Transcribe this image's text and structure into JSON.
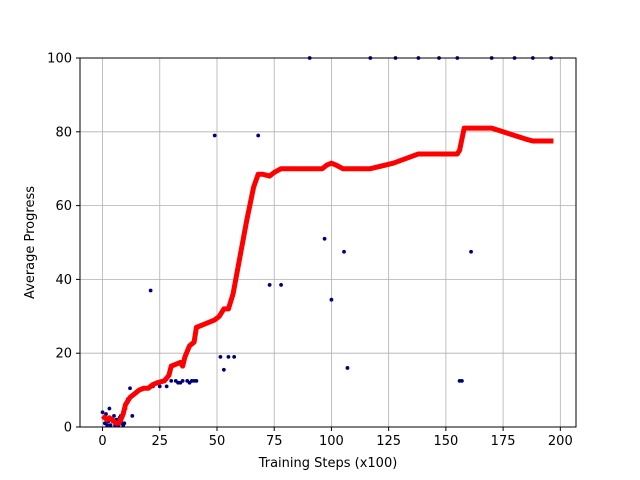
{
  "chart_data": {
    "type": "scatter",
    "title": "",
    "xlabel": "Training Steps (x100)",
    "ylabel": "Average Progress",
    "xlim": [
      -9.85,
      206.85
    ],
    "ylim": [
      0,
      100
    ],
    "xticks": [
      0,
      25,
      50,
      75,
      100,
      125,
      150,
      175,
      200
    ],
    "yticks": [
      0,
      20,
      40,
      60,
      80,
      100
    ],
    "xtick_labels": [
      "0",
      "25",
      "50",
      "75",
      "100",
      "125",
      "150",
      "175",
      "200"
    ],
    "ytick_labels": [
      "0",
      "20",
      "40",
      "60",
      "80",
      "100"
    ],
    "grid": true,
    "series": [
      {
        "kind": "scatter",
        "color": "#00007f",
        "points": [
          [
            0,
            4
          ],
          [
            0.5,
            2.5
          ],
          [
            1,
            1
          ],
          [
            1.5,
            3.5
          ],
          [
            2,
            0.5
          ],
          [
            2.5,
            1.5
          ],
          [
            3,
            5
          ],
          [
            3.5,
            0.5
          ],
          [
            4,
            2
          ],
          [
            4.5,
            1.5
          ],
          [
            5,
            3
          ],
          [
            5.5,
            0.5
          ],
          [
            6,
            2
          ],
          [
            6.5,
            1
          ],
          [
            7,
            0.5
          ],
          [
            7.5,
            2.5
          ],
          [
            8,
            3
          ],
          [
            8.5,
            1
          ],
          [
            9,
            0.5
          ],
          [
            9.5,
            1
          ],
          [
            10,
            5
          ],
          [
            11,
            7.5
          ],
          [
            12,
            10.5
          ],
          [
            13,
            3
          ],
          [
            21,
            37
          ],
          [
            22,
            11
          ],
          [
            25,
            11
          ],
          [
            28,
            11
          ],
          [
            30,
            12.5
          ],
          [
            32,
            12.5
          ],
          [
            33,
            12
          ],
          [
            34,
            12
          ],
          [
            35,
            12.5
          ],
          [
            37,
            12.5
          ],
          [
            38,
            12
          ],
          [
            39,
            12.5
          ],
          [
            40,
            12.5
          ],
          [
            41,
            12.5
          ],
          [
            49,
            79
          ],
          [
            51.5,
            19
          ],
          [
            53,
            15.5
          ],
          [
            55,
            19
          ],
          [
            57.5,
            19
          ],
          [
            68,
            79
          ],
          [
            73,
            38.5
          ],
          [
            78,
            38.5
          ],
          [
            90.5,
            100
          ],
          [
            97,
            51
          ],
          [
            100,
            34.5
          ],
          [
            105.5,
            47.5
          ],
          [
            107,
            16
          ],
          [
            117,
            100
          ],
          [
            128,
            100
          ],
          [
            138,
            100
          ],
          [
            147,
            100
          ],
          [
            155,
            100
          ],
          [
            156,
            12.5
          ],
          [
            157,
            12.5
          ],
          [
            161,
            47.5
          ],
          [
            170,
            100
          ],
          [
            180,
            100
          ],
          [
            188,
            100
          ],
          [
            196,
            100
          ]
        ]
      },
      {
        "kind": "line",
        "color": "#ff0000",
        "points": [
          [
            0,
            3
          ],
          [
            1,
            2.5
          ],
          [
            2,
            2
          ],
          [
            3,
            2.5
          ],
          [
            4,
            2
          ],
          [
            5,
            1.5
          ],
          [
            6,
            1
          ],
          [
            7,
            1
          ],
          [
            8,
            2
          ],
          [
            9,
            3.5
          ],
          [
            10,
            6
          ],
          [
            12,
            8
          ],
          [
            14,
            9
          ],
          [
            16,
            10
          ],
          [
            18,
            10.5
          ],
          [
            20,
            10.5
          ],
          [
            22,
            11.5
          ],
          [
            24,
            12
          ],
          [
            27,
            12.5
          ],
          [
            29,
            14
          ],
          [
            30,
            16.5
          ],
          [
            32,
            17
          ],
          [
            34,
            17.5
          ],
          [
            35,
            16.5
          ],
          [
            36,
            19
          ],
          [
            38,
            22
          ],
          [
            40,
            23
          ],
          [
            41,
            27
          ],
          [
            43,
            27.5
          ],
          [
            45,
            28
          ],
          [
            47,
            28.5
          ],
          [
            49,
            29
          ],
          [
            51,
            30
          ],
          [
            53,
            32
          ],
          [
            55,
            32
          ],
          [
            57,
            36
          ],
          [
            60,
            46
          ],
          [
            63,
            56
          ],
          [
            66,
            65
          ],
          [
            68,
            68.5
          ],
          [
            70,
            68.5
          ],
          [
            73,
            68
          ],
          [
            75,
            69
          ],
          [
            78,
            70
          ],
          [
            84,
            70
          ],
          [
            90,
            70
          ],
          [
            96,
            70
          ],
          [
            98,
            71
          ],
          [
            100,
            71.5
          ],
          [
            102,
            71
          ],
          [
            105,
            70
          ],
          [
            110,
            70
          ],
          [
            117,
            70
          ],
          [
            127,
            71.5
          ],
          [
            138,
            74
          ],
          [
            146,
            74
          ],
          [
            155,
            74
          ],
          [
            156,
            75
          ],
          [
            157,
            78
          ],
          [
            158,
            81
          ],
          [
            165,
            81
          ],
          [
            170,
            81
          ],
          [
            175,
            80
          ],
          [
            180,
            79
          ],
          [
            185,
            78
          ],
          [
            188,
            77.5
          ],
          [
            197,
            77.5
          ]
        ]
      }
    ]
  }
}
